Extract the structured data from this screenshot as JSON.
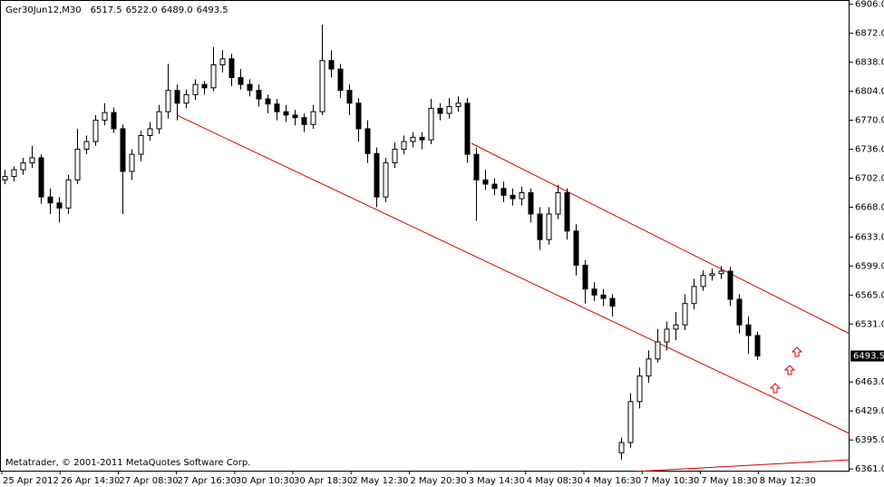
{
  "chart_data": {
    "type": "candlestick",
    "title": "Ger30Jun12,M30",
    "last_bar_labels": [
      "6517.5",
      "6522.0",
      "6489.0",
      "6493.5"
    ],
    "footer": "Metatrader, © 2001-2011 MetaQuotes Software Corp.",
    "x_labels": [
      "25 Apr 2012",
      "26 Apr 14:30",
      "27 Apr 08:30",
      "27 Apr 16:30",
      "30 Apr 10:30",
      "30 Apr 18:30",
      "2 May 12:30",
      "2 May 20:30",
      "3 May 14:30",
      "4 May 08:30",
      "4 May 16:30",
      "7 May 10:30",
      "7 May 18:30",
      "8 May 12:30"
    ],
    "ylim": [
      6359,
      6911
    ],
    "yticks": [
      {
        "value": 6906,
        "label": "6906.0"
      },
      {
        "value": 6872,
        "label": "6872.0"
      },
      {
        "value": 6838,
        "label": "6838.0"
      },
      {
        "value": 6804,
        "label": "6804.0"
      },
      {
        "value": 6770,
        "label": "6770.0"
      },
      {
        "value": 6736,
        "label": "6736.0"
      },
      {
        "value": 6702,
        "label": "6702.0"
      },
      {
        "value": 6668,
        "label": "6668.0"
      },
      {
        "value": 6633,
        "label": "6633.0"
      },
      {
        "value": 6599,
        "label": "6599.0"
      },
      {
        "value": 6565,
        "label": "6565.0"
      },
      {
        "value": 6531,
        "label": "6531.0"
      },
      {
        "value": 6463,
        "label": "6463.0"
      },
      {
        "value": 6429,
        "label": "6429.0"
      },
      {
        "value": 6395,
        "label": "6395.0"
      },
      {
        "value": 6361,
        "label": "6361.0"
      }
    ],
    "candles": [
      [
        6700,
        6712,
        6695,
        6704
      ],
      [
        6704,
        6716,
        6698,
        6712
      ],
      [
        6712,
        6726,
        6706,
        6720
      ],
      [
        6720,
        6740,
        6714,
        6726
      ],
      [
        6726,
        6730,
        6672,
        6680
      ],
      [
        6680,
        6690,
        6660,
        6673
      ],
      [
        6673,
        6680,
        6650,
        6667
      ],
      [
        6667,
        6706,
        6660,
        6700
      ],
      [
        6700,
        6760,
        6695,
        6736
      ],
      [
        6736,
        6752,
        6730,
        6745
      ],
      [
        6745,
        6776,
        6740,
        6770
      ],
      [
        6770,
        6790,
        6764,
        6779
      ],
      [
        6779,
        6785,
        6755,
        6760
      ],
      [
        6760,
        6765,
        6660,
        6710
      ],
      [
        6710,
        6736,
        6700,
        6730
      ],
      [
        6730,
        6758,
        6722,
        6752
      ],
      [
        6752,
        6768,
        6746,
        6760
      ],
      [
        6760,
        6788,
        6754,
        6780
      ],
      [
        6780,
        6836,
        6772,
        6805
      ],
      [
        6805,
        6812,
        6770,
        6790
      ],
      [
        6790,
        6806,
        6784,
        6800
      ],
      [
        6800,
        6818,
        6794,
        6812
      ],
      [
        6812,
        6816,
        6800,
        6808
      ],
      [
        6808,
        6856,
        6804,
        6835
      ],
      [
        6835,
        6852,
        6826,
        6842
      ],
      [
        6842,
        6848,
        6810,
        6820
      ],
      [
        6820,
        6830,
        6806,
        6812
      ],
      [
        6812,
        6818,
        6798,
        6805
      ],
      [
        6805,
        6812,
        6786,
        6795
      ],
      [
        6795,
        6800,
        6778,
        6789
      ],
      [
        6789,
        6795,
        6770,
        6780
      ],
      [
        6780,
        6788,
        6768,
        6776
      ],
      [
        6776,
        6782,
        6764,
        6773
      ],
      [
        6773,
        6778,
        6756,
        6765
      ],
      [
        6765,
        6788,
        6760,
        6780
      ],
      [
        6780,
        6882,
        6776,
        6840
      ],
      [
        6840,
        6852,
        6820,
        6830
      ],
      [
        6830,
        6836,
        6796,
        6805
      ],
      [
        6805,
        6812,
        6776,
        6790
      ],
      [
        6790,
        6796,
        6745,
        6760
      ],
      [
        6760,
        6770,
        6720,
        6731
      ],
      [
        6731,
        6738,
        6668,
        6680
      ],
      [
        6680,
        6726,
        6674,
        6720
      ],
      [
        6720,
        6744,
        6714,
        6736
      ],
      [
        6736,
        6752,
        6730,
        6745
      ],
      [
        6745,
        6756,
        6738,
        6750
      ],
      [
        6750,
        6756,
        6736,
        6747
      ],
      [
        6747,
        6795,
        6742,
        6784
      ],
      [
        6784,
        6790,
        6770,
        6778
      ],
      [
        6778,
        6796,
        6772,
        6786
      ],
      [
        6786,
        6798,
        6780,
        6790
      ],
      [
        6790,
        6796,
        6720,
        6730
      ],
      [
        6730,
        6738,
        6652,
        6700
      ],
      [
        6700,
        6712,
        6688,
        6695
      ],
      [
        6695,
        6702,
        6682,
        6690
      ],
      [
        6690,
        6698,
        6674,
        6682
      ],
      [
        6682,
        6690,
        6670,
        6678
      ],
      [
        6678,
        6692,
        6670,
        6685
      ],
      [
        6685,
        6690,
        6650,
        6660
      ],
      [
        6660,
        6668,
        6618,
        6630
      ],
      [
        6630,
        6668,
        6624,
        6660
      ],
      [
        6660,
        6694,
        6654,
        6685
      ],
      [
        6685,
        6690,
        6630,
        6640
      ],
      [
        6640,
        6648,
        6588,
        6600
      ],
      [
        6600,
        6606,
        6555,
        6572
      ],
      [
        6572,
        6580,
        6558,
        6565
      ],
      [
        6565,
        6572,
        6552,
        6561
      ],
      [
        6561,
        6566,
        6540,
        6552
      ],
      [
        6380,
        6398,
        6372,
        6392
      ],
      [
        6392,
        6450,
        6386,
        6440
      ],
      [
        6440,
        6480,
        6432,
        6470
      ],
      [
        6470,
        6500,
        6462,
        6490
      ],
      [
        6490,
        6525,
        6486,
        6510
      ],
      [
        6510,
        6534,
        6500,
        6525
      ],
      [
        6525,
        6545,
        6512,
        6530
      ],
      [
        6530,
        6566,
        6524,
        6555
      ],
      [
        6555,
        6584,
        6548,
        6575
      ],
      [
        6575,
        6594,
        6570,
        6588
      ],
      [
        6588,
        6596,
        6582,
        6590
      ],
      [
        6590,
        6599,
        6584,
        6593
      ],
      [
        6593,
        6598,
        6552,
        6560
      ],
      [
        6560,
        6566,
        6520,
        6530
      ],
      [
        6530,
        6540,
        6496,
        6517.5
      ],
      [
        6517.5,
        6522,
        6489,
        6493.5
      ]
    ]
  }
}
